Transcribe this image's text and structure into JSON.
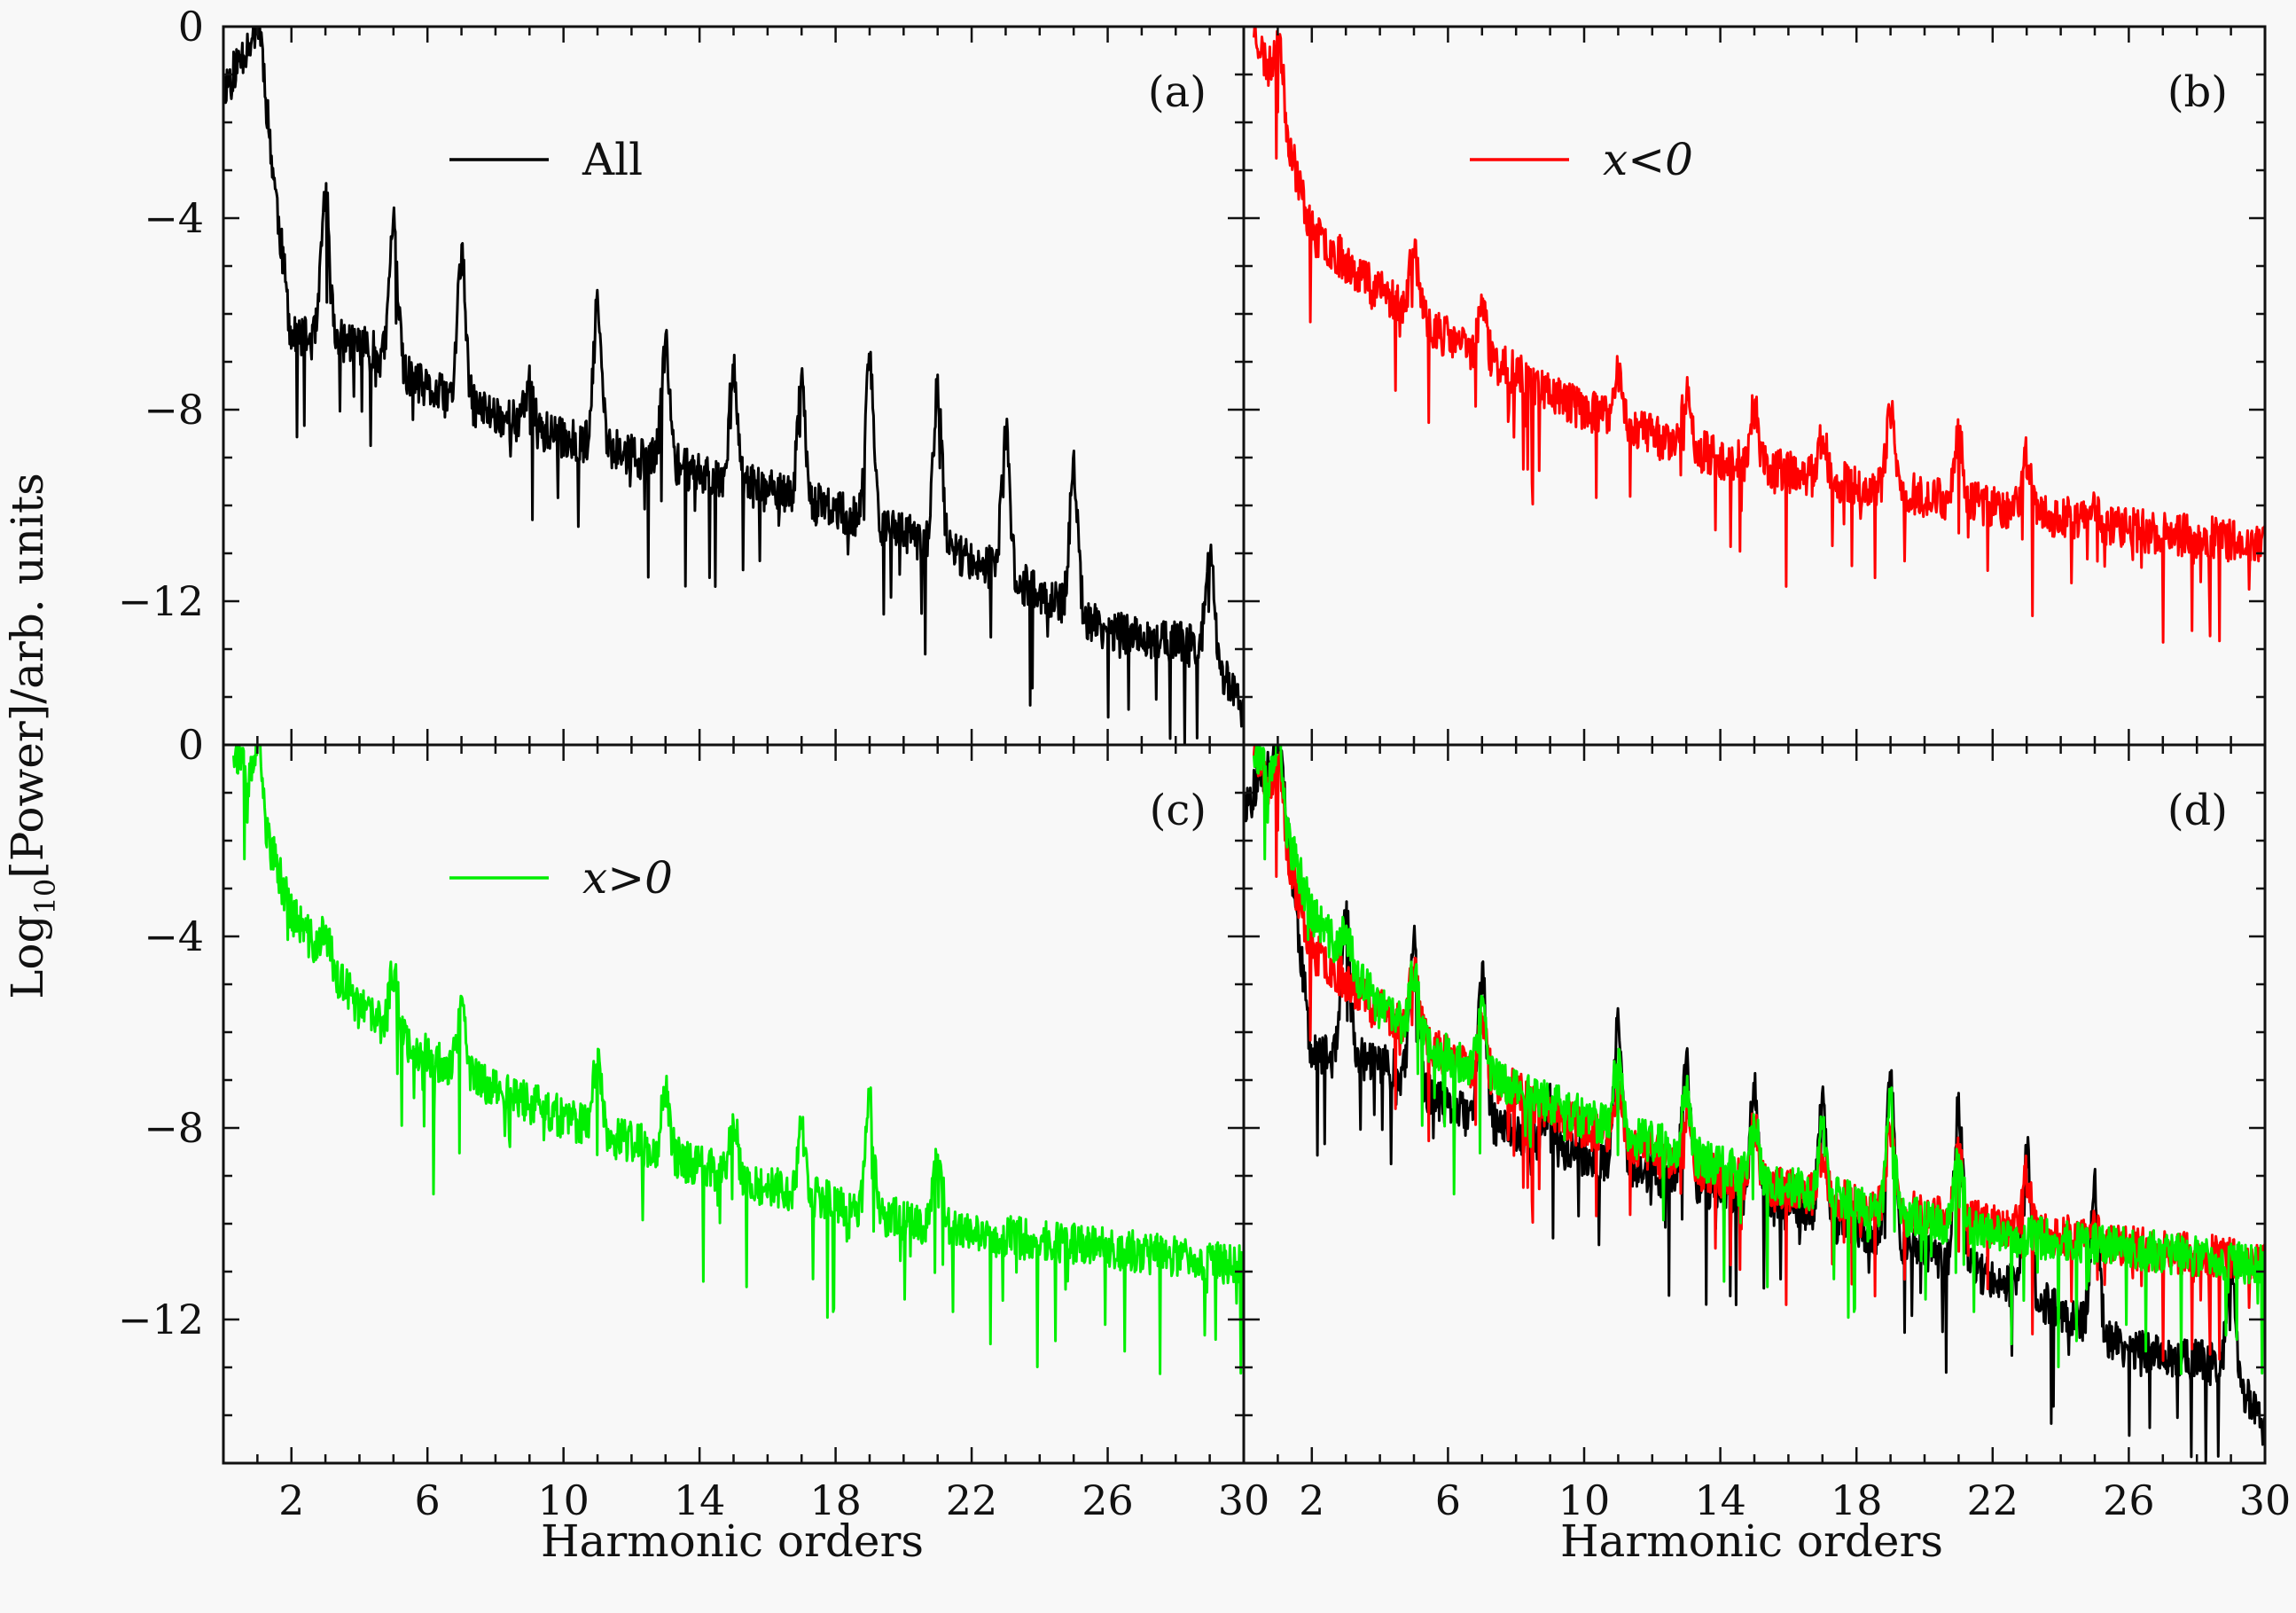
{
  "figure": {
    "ylabel": "Log10[Power]/arb. units",
    "ylabel_main": "Log",
    "ylabel_sub": "10",
    "ylabel_rest": "[Power]/arb. units",
    "xlabel": "Harmonic orders"
  },
  "colors": {
    "all": "#000000",
    "x_neg": "#ff0000",
    "x_pos": "#00ee00",
    "frame": "#111111"
  },
  "chart_data": [
    {
      "panel": "(a)",
      "type": "line",
      "xlabel": "Harmonic orders",
      "ylabel": "Log10[Power]/arb. units",
      "xlim": [
        0,
        30
      ],
      "ylim": [
        -15,
        0
      ],
      "xticks": [
        2,
        6,
        10,
        14,
        18,
        22,
        26,
        30
      ],
      "yticks": [
        0,
        -4,
        -8,
        -12
      ],
      "legend_position": "upper-center",
      "series": [
        {
          "name": "All",
          "color": "#000000",
          "envelope": [
            [
              0,
              -1.3
            ],
            [
              1,
              0
            ],
            [
              2,
              -6.5
            ],
            [
              4,
              -6.6
            ],
            [
              6,
              -7.6
            ],
            [
              10,
              -8.6
            ],
            [
              14,
              -9.3
            ],
            [
              18,
              -10.1
            ],
            [
              22,
              -11.1
            ],
            [
              26,
              -12.6
            ],
            [
              29,
              -13.0
            ],
            [
              30,
              -14.3
            ]
          ],
          "peaks": [
            [
              1,
              0
            ],
            [
              3,
              -3.5
            ],
            [
              5,
              -4.1
            ],
            [
              7,
              -4.8
            ],
            [
              9,
              -7.4
            ],
            [
              11,
              -5.9
            ],
            [
              13,
              -6.7
            ],
            [
              15,
              -7.1
            ],
            [
              17,
              -7.5
            ],
            [
              19,
              -6.9
            ],
            [
              21,
              -7.5
            ],
            [
              23,
              -8.5
            ],
            [
              25,
              -9.3
            ],
            [
              29,
              -11.1
            ]
          ]
        }
      ]
    },
    {
      "panel": "(b)",
      "type": "line",
      "xlabel": "Harmonic orders",
      "ylabel": "Log10[Power]/arb. units",
      "xlim": [
        0,
        30
      ],
      "ylim": [
        -15,
        0
      ],
      "xticks": [
        2,
        6,
        10,
        14,
        18,
        22,
        26,
        30
      ],
      "yticks": [
        0,
        -4,
        -8,
        -12
      ],
      "legend_position": "upper-center",
      "series": [
        {
          "name": "x<0",
          "color": "#ff0000",
          "envelope": [
            [
              0.3,
              0
            ],
            [
              1,
              -1.5
            ],
            [
              2,
              -4.3
            ],
            [
              4,
              -5.5
            ],
            [
              6,
              -6.5
            ],
            [
              10,
              -8.0
            ],
            [
              14,
              -9.0
            ],
            [
              18,
              -9.6
            ],
            [
              22,
              -10.0
            ],
            [
              26,
              -10.5
            ],
            [
              30,
              -10.8
            ]
          ],
          "peaks": [
            [
              1,
              0
            ],
            [
              5,
              -4.6
            ],
            [
              7,
              -5.8
            ],
            [
              11,
              -7.2
            ],
            [
              13,
              -7.7
            ],
            [
              15,
              -8.0
            ],
            [
              17,
              -8.5
            ],
            [
              19,
              -8.1
            ],
            [
              21,
              -8.5
            ],
            [
              23,
              -9.0
            ],
            [
              25,
              -10.0
            ]
          ]
        }
      ]
    },
    {
      "panel": "(c)",
      "type": "line",
      "xlabel": "Harmonic orders",
      "ylabel": "Log10[Power]/arb. units",
      "xlim": [
        0,
        30
      ],
      "ylim": [
        -15,
        0
      ],
      "xticks": [
        2,
        6,
        10,
        14,
        18,
        22,
        26,
        30
      ],
      "yticks": [
        0,
        -4,
        -8,
        -12
      ],
      "legend_position": "upper-center",
      "series": [
        {
          "name": "x>0",
          "color": "#00ee00",
          "envelope": [
            [
              0.3,
              0
            ],
            [
              1,
              -1.3
            ],
            [
              2,
              -3.5
            ],
            [
              4,
              -5.5
            ],
            [
              6,
              -6.5
            ],
            [
              10,
              -7.8
            ],
            [
              14,
              -8.8
            ],
            [
              18,
              -9.6
            ],
            [
              22,
              -10.2
            ],
            [
              26,
              -10.5
            ],
            [
              30,
              -10.9
            ]
          ],
          "peaks": [
            [
              1,
              0
            ],
            [
              3,
              -3.9
            ],
            [
              5,
              -4.7
            ],
            [
              7,
              -5.6
            ],
            [
              11,
              -6.5
            ],
            [
              13,
              -7.2
            ],
            [
              15,
              -7.8
            ],
            [
              17,
              -8.1
            ],
            [
              19,
              -7.5
            ],
            [
              21,
              -8.3
            ]
          ]
        }
      ]
    },
    {
      "panel": "(d)",
      "type": "line",
      "xlabel": "Harmonic orders",
      "ylabel": "Log10[Power]/arb. units",
      "xlim": [
        0,
        30
      ],
      "ylim": [
        -15,
        0
      ],
      "xticks": [
        2,
        6,
        10,
        14,
        18,
        22,
        26,
        30
      ],
      "yticks": [
        0,
        -4,
        -8,
        -12
      ],
      "series_ref": [
        "(a)",
        "(b)",
        "(c)"
      ]
    }
  ]
}
